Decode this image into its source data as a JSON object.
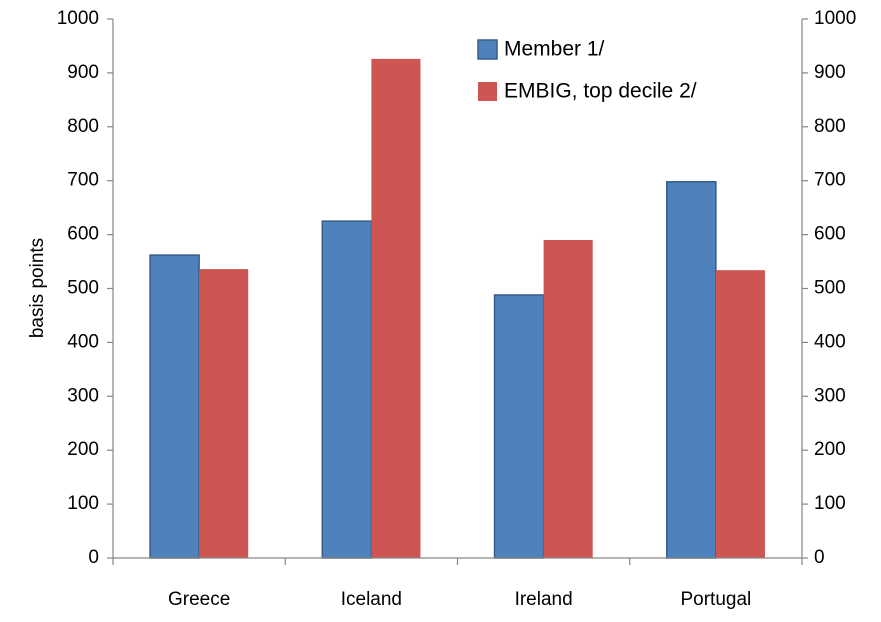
{
  "chart_data": {
    "type": "bar",
    "y_label": "basis points",
    "categories": [
      "Greece",
      "Iceland",
      "Ireland",
      "Portugal"
    ],
    "series": [
      {
        "name": "Member 1/",
        "color": "#4f81bd",
        "values": [
          562,
          625,
          488,
          698
        ]
      },
      {
        "name": "EMBIG, top decile 2/",
        "color": "#cd5652",
        "values": [
          536,
          926,
          590,
          534
        ]
      }
    ],
    "ylim": [
      0,
      1000
    ],
    "yticks": [
      0,
      100,
      200,
      300,
      400,
      500,
      600,
      700,
      800,
      900,
      1000
    ],
    "y2lim": [
      0,
      1000
    ],
    "y2ticks": [
      0,
      100,
      200,
      300,
      400,
      500,
      600,
      700,
      800,
      900,
      1000
    ],
    "legend": "upper right",
    "grid": false
  }
}
